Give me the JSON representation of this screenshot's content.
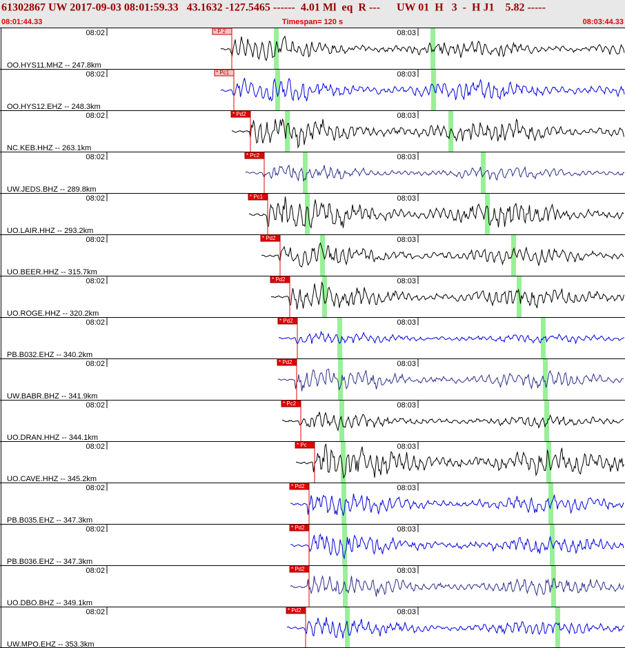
{
  "header": {
    "title": "61302867 UW 2017-09-03 08:01:59.33   43.1632 -127.5465 ------  4.01 Ml  eq  R ---      UW 01  H   3  -  H J1    5.82 -----",
    "start": "08:01:44.33",
    "timespan": "Timespan= 120 s",
    "end": "08:03:44.33"
  },
  "traces": [
    {
      "label": "OO.HYS11.MHZ -- 247.8km",
      "t1": "08:02",
      "t2": "08:03",
      "pick": "* P 2"
    },
    {
      "label": "OO.HYS12.EHZ -- 248.3km",
      "t1": "08:02",
      "t2": "08:03",
      "pick": "* Pc1"
    },
    {
      "label": "NC.KEB.HHZ -- 263.1km",
      "t1": "08:02",
      "t2": "08:03",
      "pick": "* Pd2"
    },
    {
      "label": "UW.JEDS.BHZ -- 289.8km",
      "t1": "08:02",
      "t2": "08:03",
      "pick": "* Pc2"
    },
    {
      "label": "UO.LAIR.HHZ -- 293.2km",
      "t1": "08:02",
      "t2": "08:03",
      "pick": "* Pc1"
    },
    {
      "label": "UO.BEER.HHZ -- 315.7km",
      "t1": "08:02",
      "t2": "08:03",
      "pick": "* Pd2"
    },
    {
      "label": "UO.ROGE.HHZ -- 320.2km",
      "t1": "08:02",
      "t2": "08:03",
      "pick": "* Pd2"
    },
    {
      "label": "PB.B032.EHZ -- 340.2km",
      "t1": "08:02",
      "t2": "08:03",
      "pick": "* Pd2"
    },
    {
      "label": "UW.BABR.BHZ -- 341.9km",
      "t1": "08:02",
      "t2": "08:03",
      "pick": "* Pd2"
    },
    {
      "label": "UO.DRAN.HHZ -- 344.1km",
      "t1": "08:02",
      "t2": "08:03",
      "pick": "* Pc2"
    },
    {
      "label": "UO.CAVE.HHZ -- 345.2km",
      "t1": "08:02",
      "t2": "08:03",
      "pick": "* Pc"
    },
    {
      "label": "PB.B035.EHZ -- 347.3km",
      "t1": "08:02",
      "t2": "08:03",
      "pick": "* Pd2"
    },
    {
      "label": "PB.B036.EHZ -- 347.3km",
      "t1": "08:02",
      "t2": "08:03",
      "pick": "* Pd2"
    },
    {
      "label": "UO.DBO.BHZ -- 349.1km",
      "t1": "08:02",
      "t2": "08:03",
      "pick": "* Pd2"
    },
    {
      "label": "UW.MPO.EHZ -- 353.3km",
      "t1": "08:02",
      "t2": "08:03",
      "pick": "* Pd2"
    }
  ]
}
